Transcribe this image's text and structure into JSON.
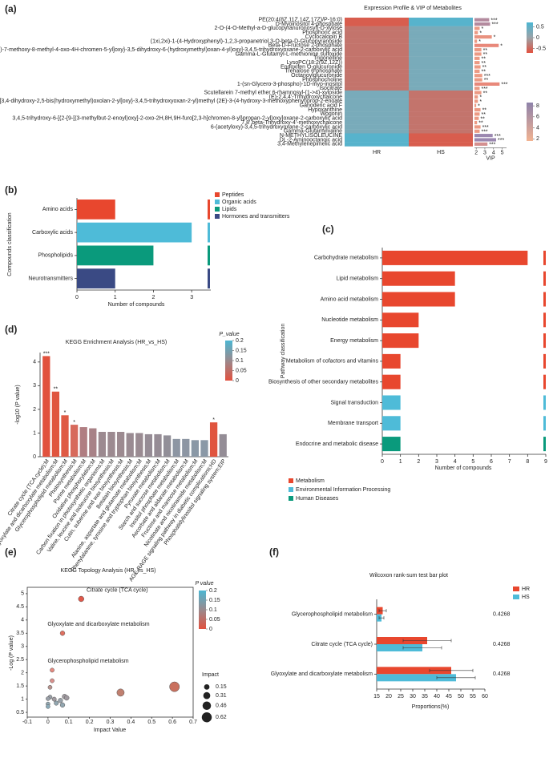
{
  "chart_data": [
    {
      "type": "heatmap",
      "panel_label": "(a)",
      "title": "Expression Profile & VIP of Metabolites",
      "columns": [
        "HR",
        "HS"
      ],
      "rows": [
        "PE(20:4(8Z,11Z,14Z,17Z)/P-16:0)",
        "D-Myoinositol 4-phosphate",
        "2-O-(4-O-Methyl-a-D-glucopyranuronosyl)-D-xylose",
        "Phosphoric acid",
        "Cyclocalopin B",
        "(1xi,2xi)-1-(4-Hydroxyphenyl)-1,2,3-propanetriol 3-O-beta-D-Glucopyranoside",
        "Beta-D-Fructose 2-phosphate",
        "6-[(2-{[3-(3,4-dimethoxyphenyl)-7-methoxy-8-methyl-4-oxo-4H-chromen-5-yl]oxy}-3,5-dihydroxy-6-(hydroxymethyl)oxan-4-yl)oxy]-3,4,5-trihydroxyoxane-2-carboxylic acid",
        "Gamma-L-Glutamyl-L-methionine sulfoxide",
        "Trigonelline",
        "LysoPC(18:2(9Z,12Z))",
        "Endoxifen O-glucuronide",
        "Trehalose 6-phosphate",
        "Octanoylglucuronide",
        "Phosphocholine",
        "1-(sn-Glycero-3-phospho)-1D-myo-inositol",
        "Isocitrate",
        "Scutellarein 7-methyl ether 6-rhamnosyl-(1->4)-xyloside",
        "(E)-2,4,4'-Trihydroxychalcone",
        "(6-{[3,4-dihydroxy-2,5-bis(hydroxymethyl)oxolan-2-yl]oxy}-3,4,5-trihydroxyoxan-2-yl)methyl (2E)-3-(4-hydroxy-3-methoxyphenyl)prop-2-enoate",
        "Ganoderic acid F",
        "Hypoxanthine",
        "Wogonin",
        "3,4,5-trihydroxy-6-[(2-{9-[(3-methylbut-2-enoyl)oxy]-2-oxo-2H,8H,9H-furo[2,3-h]chromen-8-yl}propan-2-yl)oxy]oxane-2-carboxylic acid",
        "7,8',beta-Trihydroxy-4'-methoxychalcone",
        "6-(acetyloxy)-3,4,5-trihydroxyoxane-2-carboxylic acid",
        "Gamma-Glutamylvaline",
        "N-METHYLISOLEUCINE",
        "DL-2-Aminooctanoic acid",
        "3,4-Methylenepimelic acid"
      ],
      "values": [
        [
          -0.6,
          0.6
        ],
        [
          -0.6,
          0.6
        ],
        [
          -0.4,
          0.3
        ],
        [
          -0.4,
          0.3
        ],
        [
          -0.4,
          0.3
        ],
        [
          -0.4,
          0.3
        ],
        [
          -0.4,
          0.3
        ],
        [
          -0.4,
          0.3
        ],
        [
          -0.4,
          0.3
        ],
        [
          -0.4,
          0.3
        ],
        [
          -0.4,
          0.3
        ],
        [
          -0.4,
          0.3
        ],
        [
          -0.4,
          0.3
        ],
        [
          -0.4,
          0.3
        ],
        [
          -0.4,
          0.3
        ],
        [
          -0.4,
          0.3
        ],
        [
          -0.4,
          0.3
        ],
        [
          0.3,
          -0.4
        ],
        [
          0.3,
          -0.4
        ],
        [
          0.3,
          -0.4
        ],
        [
          0.3,
          -0.4
        ],
        [
          0.3,
          -0.4
        ],
        [
          0.3,
          -0.4
        ],
        [
          0.3,
          -0.4
        ],
        [
          0.3,
          -0.4
        ],
        [
          0.3,
          -0.4
        ],
        [
          0.3,
          -0.4
        ],
        [
          0.6,
          -0.6
        ],
        [
          0.6,
          -0.6
        ],
        [
          0.6,
          -0.6
        ]
      ],
      "zlim": [
        -0.7,
        0.7
      ],
      "colorscale": [
        "#e2513f",
        "#9aa3a8",
        "#4cb6d2"
      ],
      "colorbar": {
        "ticks": [
          0.5,
          0,
          -0.5
        ]
      },
      "vip": {
        "xlabel": "VIP",
        "xlim": [
          1.8,
          5.5
        ],
        "xticks": [
          2,
          3,
          4,
          5
        ],
        "values": [
          3.5,
          3.6,
          2.4,
          2.2,
          3.8,
          2.1,
          4.6,
          2.6,
          2.6,
          2.4,
          2.4,
          2.5,
          2.4,
          2.7,
          2.7,
          4.7,
          2.4,
          2.6,
          2.2,
          2.2,
          2.0,
          2.5,
          2.4,
          2.3,
          2.1,
          2.5,
          2.4,
          3.9,
          4.3,
          3.3
        ],
        "significance": [
          "***",
          "***",
          "*",
          "*",
          "*",
          "*",
          "*",
          "**",
          "**",
          "**",
          "**",
          "**",
          "**",
          "***",
          "**",
          "***",
          "***",
          "**",
          "*",
          "*",
          "*",
          "**",
          "**",
          "**",
          "**",
          "***",
          "***",
          "***",
          "***",
          "***"
        ],
        "colors": [
          "#b38a9e",
          "#b38a9e",
          "#ec9a84",
          "#ec9a84",
          "#e9927f",
          "#ec9a84",
          "#e8887a",
          "#ec9a84",
          "#ec9a84",
          "#ec9a84",
          "#ec9a84",
          "#ec9a84",
          "#ec9a84",
          "#ec9a84",
          "#ec9a84",
          "#e8887a",
          "#ec9a84",
          "#ec9a84",
          "#ec9a84",
          "#ec9a84",
          "#ec9a84",
          "#ec9a84",
          "#ec9a84",
          "#ec9a84",
          "#ec9a84",
          "#ec9a84",
          "#ec9a84",
          "#9b88b0",
          "#9b88b0",
          "#d49090"
        ],
        "colorbar": {
          "range": [
            1.6,
            8.6
          ],
          "ticks": [
            8,
            6,
            4,
            2
          ],
          "colors": [
            "#f2b392",
            "#8e82aa"
          ]
        }
      }
    },
    {
      "type": "bar",
      "horizontal": true,
      "panel_label": "(b)",
      "xlabel": "Number of compounds",
      "ylabel": "Compounds classification",
      "categories": [
        "Amino acids",
        "Carboxylic acids",
        "Phospholipids",
        "Neurotransmitters"
      ],
      "values": [
        1,
        3,
        2,
        1
      ],
      "colors": [
        "#e8472e",
        "#4ebbd8",
        "#0a9a7c",
        "#3a4a84"
      ],
      "xlim": [
        0,
        3.5
      ],
      "xticks": [
        0,
        1,
        2,
        3
      ],
      "legend": [
        {
          "name": "Peptides",
          "color": "#e8472e"
        },
        {
          "name": "Organic acids",
          "color": "#4ebbd8"
        },
        {
          "name": "Lipids",
          "color": "#0a9a7c"
        },
        {
          "name": "Hormones and transmitters",
          "color": "#3a4a84"
        }
      ]
    },
    {
      "type": "bar",
      "horizontal": true,
      "panel_label": "(c)",
      "xlabel": "Number of compounds",
      "ylabel": "Pathway classification",
      "categories": [
        "Carbohydrate metabolism",
        "Lipid metabolism",
        "Amino acid metabolism",
        "Nucleotide metabolism",
        "Energy metabolism",
        "Metabolism of cofactors and vitamins",
        "Biosynthesis of other secondary metabolites",
        "Signal transduction",
        "Membrane transport",
        "Endocrine and metabolic disease"
      ],
      "values": [
        8,
        4,
        4,
        2,
        2,
        1,
        1,
        1,
        1,
        1
      ],
      "colors": [
        "#e8472e",
        "#e8472e",
        "#e8472e",
        "#e8472e",
        "#e8472e",
        "#e8472e",
        "#e8472e",
        "#4ebbd8",
        "#4ebbd8",
        "#0a9a7c"
      ],
      "xlim": [
        0,
        9
      ],
      "xticks": [
        0,
        1,
        2,
        3,
        4,
        5,
        6,
        7,
        8,
        9
      ],
      "legend": [
        {
          "name": "Metabolism",
          "color": "#e8472e"
        },
        {
          "name": "Environmental Information Processing",
          "color": "#4ebbd8"
        },
        {
          "name": "Human Diseases",
          "color": "#0a9a7c"
        }
      ]
    },
    {
      "type": "bar",
      "panel_label": "(d)",
      "title": "KEGG Enrichment Analysis (HR_vs_HS)",
      "ylabel": "-log10 (P value)",
      "categories": [
        "Citrate cycle (TCA cycle);M",
        "Glyoxylate and dicarboxylate metabolism;M",
        "Glycerophospholipid metabolism;M",
        "Photosynthesis;M",
        "Purine metabolism;M",
        "Oxidative phosphorylation;M",
        "Carbon fixation in photosynthetic organisms;M",
        "Valine, leucine and isoleucine biosynthesis;M",
        "Cutin, suberine and wax biosynthesis;M",
        "Betalain biosynthesis;M",
        "Alanine, aspartate and glutamate metabolism;M",
        "Phenylalanine, tyrosine and tryptophan biosynthesis;M",
        "Pyruvate metabolism;M",
        "Starch and sucrose metabolism;M",
        "Inositol phosphate metabolism;M",
        "Ascorbate and aldarate metabolism;M",
        "Fructose and mannose metabolism;M",
        "Nicotinate and nicotinamide metabolism;M",
        "AGE-RAGE signaling pathway in diabetic complications;HD",
        "Phosphatidylinositol signaling system;EIP"
      ],
      "values": [
        4.25,
        2.75,
        1.75,
        1.35,
        1.25,
        1.2,
        1.05,
        1.05,
        1.05,
        1.0,
        1.0,
        0.95,
        0.95,
        0.9,
        0.75,
        0.75,
        0.7,
        0.7,
        1.45,
        0.95
      ],
      "significance": [
        "***",
        "**",
        "*",
        "*",
        null,
        null,
        null,
        null,
        null,
        null,
        null,
        null,
        null,
        null,
        null,
        null,
        null,
        null,
        "*",
        null
      ],
      "colors": [
        "#e1513d",
        "#e0553f",
        "#df5a44",
        "#d76a5c",
        "#b07e82",
        "#a88287",
        "#9c8a90",
        "#9c8a90",
        "#9c8a90",
        "#9a8b92",
        "#9a8b92",
        "#968c95",
        "#968c95",
        "#928f98",
        "#8d96a3",
        "#8d96a3",
        "#8a98a6",
        "#8a98a6",
        "#e0553f",
        "#948d96"
      ],
      "ylim": [
        0,
        4.4
      ],
      "yticks": [
        0,
        1,
        2,
        3,
        4
      ],
      "colorbar": {
        "title": "P_value",
        "range": [
          0,
          0.2
        ],
        "ticks": [
          0.2,
          0.15,
          0.1,
          0.05,
          0
        ],
        "colors": [
          "#e2513f",
          "#9a8a8e",
          "#4cb6d2"
        ]
      }
    },
    {
      "type": "scatter",
      "panel_label": "(e)",
      "title": "KEGG Topology Analysis (HR_vs_HS)",
      "xlabel": "Impact Value",
      "ylabel": "-Log (P value)",
      "x": [
        0.16,
        0.07,
        0.02,
        0.02,
        0.01,
        0.61,
        0.35,
        0.01,
        0.0,
        0.03,
        0.08,
        0.09,
        0.06,
        0.0,
        0.04,
        0.07,
        0.0
      ],
      "y": [
        4.8,
        3.5,
        2.1,
        1.7,
        1.45,
        1.47,
        1.25,
        1.08,
        1.02,
        1.0,
        1.1,
        1.05,
        0.95,
        0.82,
        0.85,
        0.78,
        0.72
      ],
      "colors": [
        "#e0584a",
        "#e07060",
        "#e58a80",
        "#d9908c",
        "#b8948f",
        "#c9705e",
        "#c08070",
        "#9aa0a8",
        "#9aa0a8",
        "#a09aa0",
        "#a09aa0",
        "#a09aa0",
        "#98a2aa",
        "#92a6b0",
        "#92a6b0",
        "#92a6b0",
        "#8aaab8"
      ],
      "point_labels": [
        "Citrate cycle (TCA cycle)",
        "Glyoxylate and dicarboxylate metabolism",
        "Glycerophospholipid metabolism",
        null,
        null,
        null,
        null,
        null,
        null,
        null,
        null,
        null,
        null,
        null,
        null,
        null,
        null
      ],
      "xlim": [
        -0.1,
        0.7
      ],
      "xticks": [
        -0.1,
        0,
        0.1,
        0.2,
        0.3,
        0.4,
        0.5,
        0.6,
        0.7
      ],
      "ylim": [
        0.32,
        5.24
      ],
      "yticks": [
        0.5,
        1,
        1.5,
        2,
        2.5,
        3,
        3.5,
        4,
        4.5,
        5
      ],
      "colorbar": {
        "title": "P value",
        "range": [
          0,
          0.2
        ],
        "ticks": [
          0.2,
          0.15,
          0.1,
          0.05,
          0
        ],
        "colors": [
          "#e2513f",
          "#9a8a8e",
          "#4cb6d2"
        ]
      },
      "size_legend": {
        "title": "Impact",
        "values": [
          0.15,
          0.31,
          0.46,
          0.62
        ]
      }
    },
    {
      "type": "bar",
      "horizontal": true,
      "panel_label": "(f)",
      "title": "Wilcoxon rank-sum test bar plot",
      "xlabel": "Proportions(%)",
      "categories": [
        "Glycerophospholipid metabolism",
        "Citrate cycle (TCA cycle)",
        "Glyoxylate and dicarboxylate metabolism"
      ],
      "series": [
        {
          "name": "HR",
          "color": "#e8472e",
          "values": [
            17.5,
            36,
            46
          ],
          "errors": [
            1.5,
            10,
            9
          ]
        },
        {
          "name": "HS",
          "color": "#4ebbd8",
          "values": [
            17,
            34,
            48
          ],
          "errors": [
            1,
            8,
            8
          ]
        }
      ],
      "p_values": [
        0.4268,
        0.4268,
        0.4268
      ],
      "xlim": [
        15,
        60
      ],
      "xticks": [
        15,
        20,
        25,
        30,
        35,
        40,
        45,
        50,
        55,
        60
      ]
    }
  ]
}
